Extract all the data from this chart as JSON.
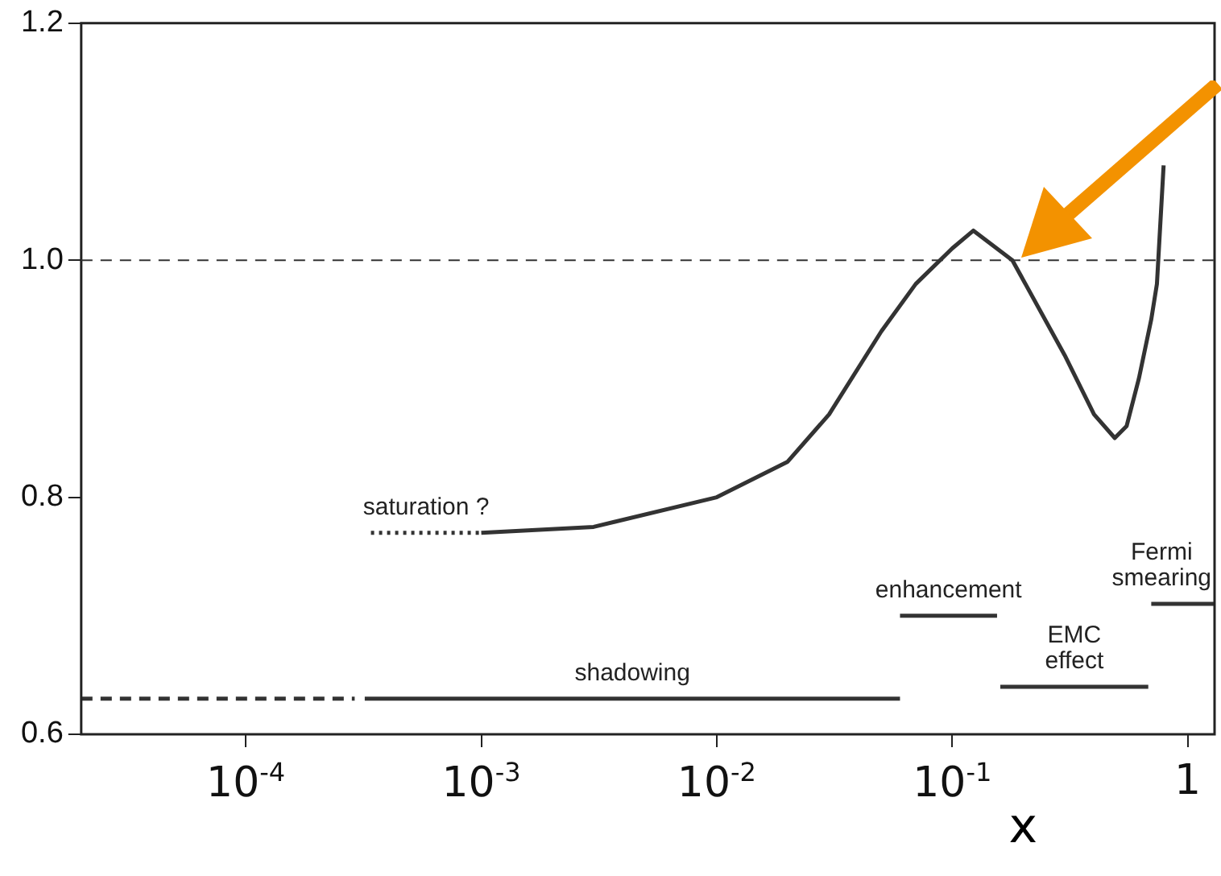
{
  "chart_data": {
    "type": "line",
    "xlabel": "x",
    "log": "x",
    "grid": false,
    "legend": false,
    "marker": "none",
    "xlim": [
      2e-05,
      1.3
    ],
    "ylim": [
      0.6,
      1.2
    ],
    "xticks": [
      {
        "value": 0.0001,
        "label": "10$^{-4}$"
      },
      {
        "value": 0.001,
        "label": "10$^{-3}$"
      },
      {
        "value": 0.01,
        "label": "10$^{-2}$"
      },
      {
        "value": 0.1,
        "label": "10$^{-1}$"
      },
      {
        "value": 1,
        "label": "1"
      }
    ],
    "yticks": [
      0.6,
      0.8,
      {
        "value": 1,
        "label": "1.0"
      },
      {
        "value": 1.2,
        "label": "1.2"
      }
    ],
    "ref_lines": [
      {
        "axis": "y",
        "value": 1,
        "line_style": "dashed",
        "color": "#333333"
      }
    ],
    "series": [
      {
        "color": "#333333",
        "x": [
          0.001,
          0.003,
          0.01,
          0.02,
          0.03,
          0.05,
          0.07,
          0.1,
          0.123,
          0.18,
          0.3,
          0.4,
          0.49,
          0.55,
          0.62,
          0.7,
          0.74,
          0.79
        ],
        "values": [
          0.77,
          0.775,
          0.8,
          0.83,
          0.87,
          0.94,
          0.98,
          1.01,
          1.025,
          1.0,
          0.92,
          0.87,
          0.85,
          0.86,
          0.9,
          0.95,
          0.98,
          1.08
        ]
      },
      {
        "name": "saturation ?",
        "color": "#333333",
        "line_style": "dotted",
        "x": [
          0.00034,
          0.001
        ],
        "values": [
          0.77,
          0.77
        ]
      },
      {
        "color": "#333333",
        "line_style": "dashed",
        "x": [
          2e-05,
          0.00029
        ],
        "values": [
          0.63,
          0.63
        ]
      },
      {
        "name": "shadowing",
        "color": "#333333",
        "x": [
          0.00032,
          0.06
        ],
        "values": [
          0.63,
          0.63
        ]
      },
      {
        "name": "enhancement",
        "color": "#333333",
        "x": [
          0.06,
          0.155
        ],
        "values": [
          0.7,
          0.7
        ]
      },
      {
        "name": "EMC effect",
        "color": "#333333",
        "x": [
          0.16,
          0.68
        ],
        "values": [
          0.64,
          0.64
        ]
      },
      {
        "name": "Fermi smearing",
        "color": "#333333",
        "x": [
          0.7,
          1.3
        ],
        "values": [
          0.71,
          0.71
        ]
      }
    ]
  }
}
